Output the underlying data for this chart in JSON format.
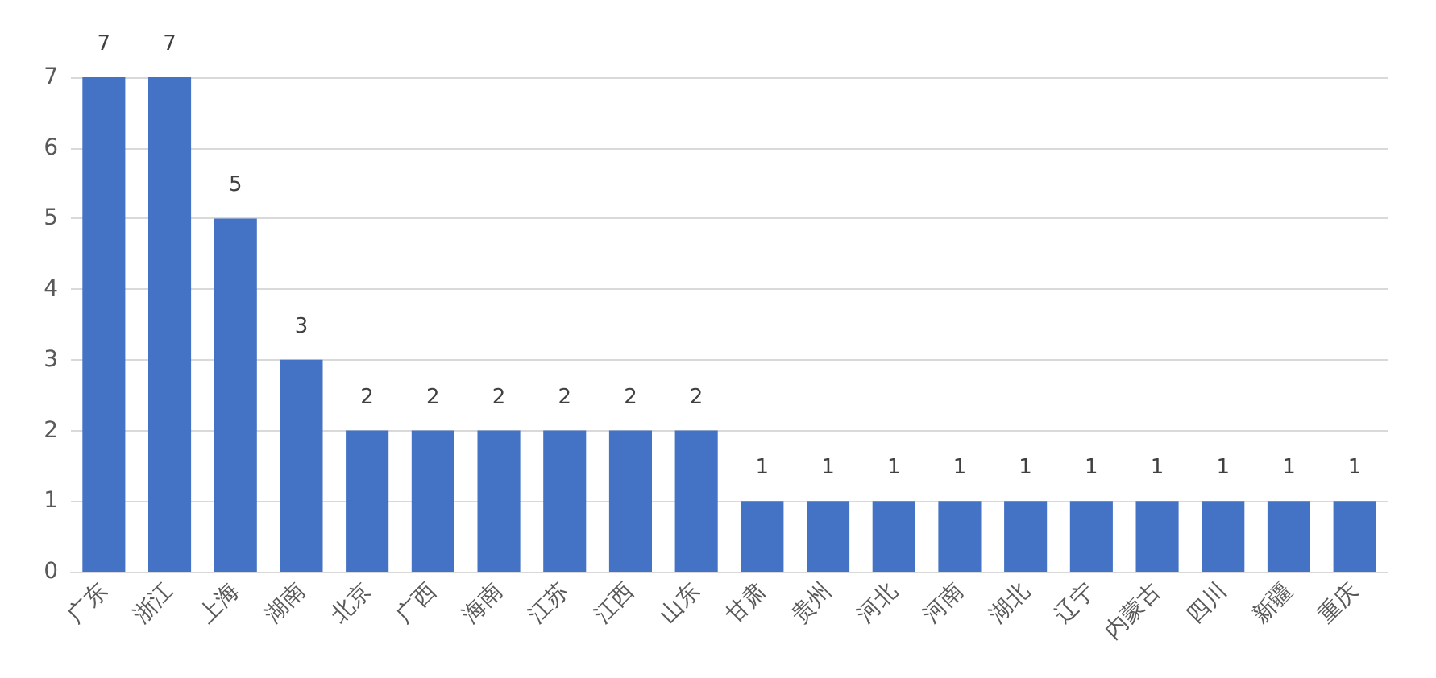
{
  "chart_data": {
    "type": "bar",
    "categories": [
      "广东",
      "浙江",
      "上海",
      "湖南",
      "北京",
      "广西",
      "海南",
      "江苏",
      "江西",
      "山东",
      "甘肃",
      "贵州",
      "河北",
      "河南",
      "湖北",
      "辽宁",
      "内蒙古",
      "四川",
      "新疆",
      "重庆"
    ],
    "values": [
      7,
      7,
      5,
      3,
      2,
      2,
      2,
      2,
      2,
      2,
      1,
      1,
      1,
      1,
      1,
      1,
      1,
      1,
      1,
      1
    ],
    "color": "#4472c4",
    "ylim": [
      0,
      7
    ],
    "yticks": [
      0,
      1,
      2,
      3,
      4,
      5,
      6,
      7
    ],
    "grid": "y",
    "data_labels": true
  }
}
